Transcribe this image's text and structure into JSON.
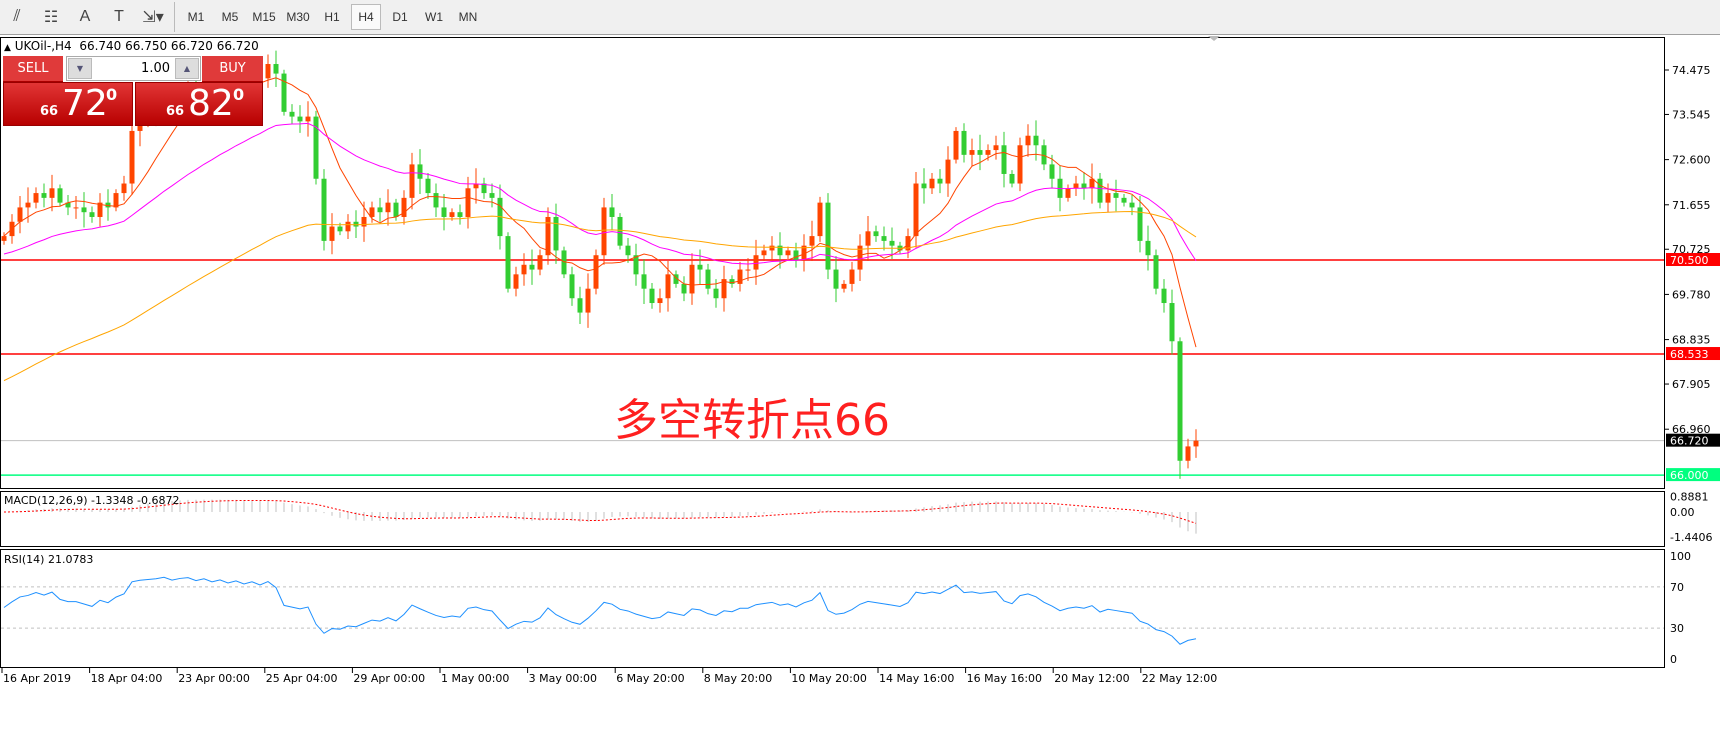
{
  "toolbar": {
    "tools": [
      {
        "icon": "fibonacci-fan-icon",
        "glyph": "⫽"
      },
      {
        "icon": "fibonacci-grid-icon",
        "glyph": "☷"
      },
      {
        "icon": "text-icon",
        "glyph": "A"
      },
      {
        "icon": "text-label-icon",
        "glyph": "T"
      },
      {
        "icon": "arrows-dropdown-icon",
        "glyph": "⇲▾"
      }
    ],
    "timeframes": [
      "M1",
      "M5",
      "M15",
      "M30",
      "H1",
      "H4",
      "D1",
      "W1",
      "MN"
    ],
    "active_timeframe": "H4"
  },
  "chart_header": {
    "symbol": "UKOil-,H4",
    "ohlc": "66.740 66.750 66.720 66.720"
  },
  "trade_panel": {
    "sell_label": "SELL",
    "buy_label": "BUY",
    "lot": "1.00",
    "sell_small": "66",
    "sell_big": "72",
    "sell_sup": "0",
    "buy_small": "66",
    "buy_big": "82",
    "buy_sup": "0"
  },
  "annotation": "多空转折点66",
  "colors": {
    "bull": "#ff4500",
    "bear": "#32cd32",
    "ma_fast": "#ff4500",
    "ma_mid": "#ff00ff",
    "ma_slow": "#ffa500",
    "level_red": "#ff0000",
    "level_green": "#00ff7f",
    "rsi": "#1e90ff",
    "macd_signal": "#ff0000",
    "macd_hist": "#c0c0c0"
  },
  "chart_data": {
    "type": "candlestick",
    "symbol": "UKOil-",
    "timeframe": "H4",
    "price_axis": [
      "74.475",
      "73.545",
      "72.600",
      "71.655",
      "70.725",
      "69.780",
      "68.835",
      "67.905",
      "66.960"
    ],
    "ylim": [
      65.8,
      75.0
    ],
    "levels": [
      {
        "label": "70.500",
        "value": 70.5,
        "color": "#ff0000"
      },
      {
        "label": "68.533",
        "value": 68.533,
        "color": "#ff0000"
      },
      {
        "label": "66.000",
        "value": 66.0,
        "color": "#00ff7f"
      }
    ],
    "current_price": {
      "label": "66.720",
      "value": 66.72
    },
    "time_axis": [
      "16 Apr 2019",
      "18 Apr 04:00",
      "23 Apr 00:00",
      "25 Apr 04:00",
      "29 Apr 00:00",
      "1 May 00:00",
      "3 May 00:00",
      "6 May 20:00",
      "8 May 20:00",
      "10 May 20:00",
      "14 May 16:00",
      "16 May 16:00",
      "20 May 12:00",
      "22 May 12:00"
    ],
    "close": [
      71.0,
      71.3,
      71.6,
      71.7,
      71.9,
      71.8,
      72.0,
      71.7,
      71.6,
      71.6,
      71.5,
      71.4,
      71.7,
      71.6,
      71.9,
      72.1,
      73.2,
      73.4,
      73.5,
      73.6,
      73.8,
      73.7,
      73.9,
      74.0,
      73.9,
      74.1,
      74.0,
      74.2,
      74.1,
      74.3,
      74.2,
      74.4,
      74.3,
      74.6,
      74.4,
      73.6,
      73.5,
      73.4,
      73.5,
      72.2,
      70.9,
      71.2,
      71.1,
      71.3,
      71.2,
      71.4,
      71.6,
      71.5,
      71.7,
      71.4,
      71.8,
      72.5,
      72.2,
      71.9,
      71.6,
      71.4,
      71.5,
      71.4,
      72.0,
      72.1,
      71.9,
      71.8,
      71.0,
      69.9,
      70.2,
      70.4,
      70.3,
      70.6,
      71.4,
      70.7,
      70.2,
      69.7,
      69.4,
      69.9,
      70.6,
      71.6,
      71.4,
      70.8,
      70.6,
      70.2,
      69.9,
      69.6,
      69.7,
      70.2,
      70.0,
      69.8,
      70.4,
      70.3,
      69.9,
      69.7,
      70.1,
      70.0,
      70.3,
      70.3,
      70.6,
      70.7,
      70.8,
      70.6,
      70.7,
      70.5,
      70.8,
      71.0,
      71.7,
      70.3,
      69.9,
      70.0,
      70.3,
      70.8,
      71.1,
      71.0,
      70.9,
      70.8,
      70.7,
      71.0,
      72.1,
      72.0,
      72.2,
      72.1,
      72.6,
      73.2,
      72.7,
      72.8,
      72.7,
      72.8,
      72.9,
      72.3,
      72.1,
      72.9,
      73.1,
      72.9,
      72.5,
      72.2,
      71.8,
      72.0,
      72.1,
      72.0,
      72.2,
      71.7,
      71.9,
      71.8,
      71.7,
      71.6,
      70.9,
      70.6,
      69.9,
      69.6,
      68.8,
      66.3,
      66.6,
      66.72
    ],
    "macd": {
      "label": "MACD(12,26,9) -1.3348 -0.6872",
      "axis": [
        "0.8881",
        "0.00",
        "-1.4406"
      ]
    },
    "rsi": {
      "label": "RSI(14) 21.0783",
      "axis": [
        "100",
        "70",
        "30",
        "0"
      ],
      "levels": [
        70,
        30
      ]
    }
  }
}
